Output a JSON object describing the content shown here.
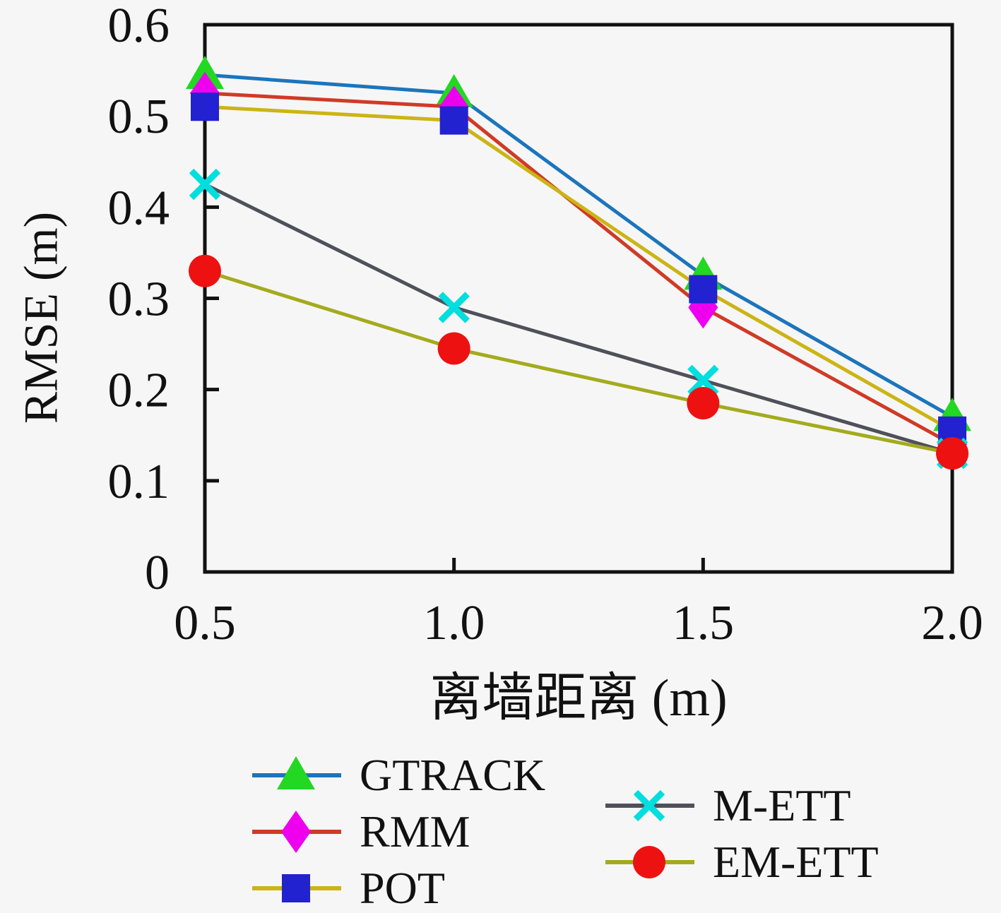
{
  "figure": {
    "background": "#f6f6f6",
    "frame_color": "#111111"
  },
  "chart_data": {
    "type": "line",
    "xlabel": "离墙距离 (m)",
    "ylabel": "RMSE (m)",
    "x": [
      0.5,
      1.0,
      1.5,
      2.0
    ],
    "xlim": [
      0.5,
      2.0
    ],
    "ylim": [
      0,
      0.6
    ],
    "xticks": [
      "0.5",
      "1.0",
      "1.5",
      "2.0"
    ],
    "yticks": [
      "0",
      "0.1",
      "0.2",
      "0.3",
      "0.4",
      "0.5",
      "0.6"
    ],
    "grid": false,
    "legend_position": "below-two-columns",
    "series": [
      {
        "name": "GTRACK",
        "values": [
          0.545,
          0.525,
          0.325,
          0.17
        ],
        "line_color": "#1b75bc",
        "marker": "triangle",
        "marker_color": "#22d822"
      },
      {
        "name": "RMM",
        "values": [
          0.525,
          0.51,
          0.29,
          0.14
        ],
        "line_color": "#d03a26",
        "marker": "diamond",
        "marker_color": "#ee00ee"
      },
      {
        "name": "POT",
        "values": [
          0.51,
          0.495,
          0.31,
          0.155
        ],
        "line_color": "#ccb414",
        "marker": "square",
        "marker_color": "#2222d0"
      },
      {
        "name": "M-ETT",
        "values": [
          0.425,
          0.29,
          0.21,
          0.13
        ],
        "line_color": "#50505a",
        "marker": "x",
        "marker_color": "#00dede"
      },
      {
        "name": "EM-ETT",
        "values": [
          0.33,
          0.245,
          0.185,
          0.13
        ],
        "line_color": "#a3ab1d",
        "marker": "circle",
        "marker_color": "#ee1111"
      }
    ],
    "legend_columns": [
      [
        "GTRACK",
        "RMM",
        "POT"
      ],
      [
        "M-ETT",
        "EM-ETT"
      ]
    ]
  }
}
